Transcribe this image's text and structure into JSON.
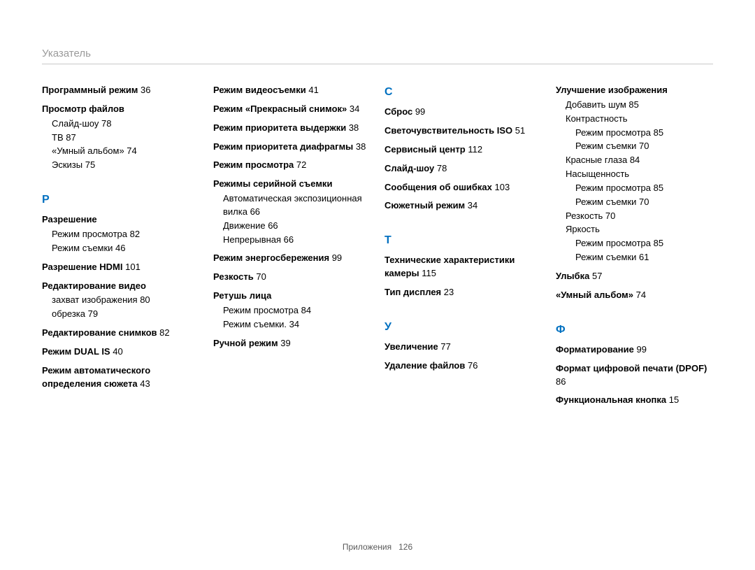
{
  "header": "Указатель",
  "footer_label": "Приложения",
  "footer_page": "126",
  "colors": {
    "letter": "#0070c0",
    "header_text": "#9a9a9a",
    "rule": "#c8c8c8",
    "body": "#000000",
    "background": "#ffffff"
  },
  "typography": {
    "body_size_pt": 10,
    "letter_size_pt": 12,
    "header_size_pt": 11,
    "family": "Arial"
  },
  "columns": [
    [
      {
        "type": "entry",
        "bold": "Программный режим",
        "page": "36"
      },
      {
        "type": "entry",
        "bold": "Просмотр файлов",
        "subs": [
          {
            "text": "Слайд-шоу",
            "page": "78"
          },
          {
            "text": "ТВ",
            "page": "87"
          },
          {
            "text": "«Умный альбом»",
            "page": "74"
          },
          {
            "text": "Эскизы",
            "page": "75"
          }
        ]
      },
      {
        "type": "letter",
        "text": "Р"
      },
      {
        "type": "entry",
        "bold": "Разрешение",
        "subs": [
          {
            "text": "Режим просмотра",
            "page": "82"
          },
          {
            "text": "Режим съемки",
            "page": "46"
          }
        ]
      },
      {
        "type": "entry",
        "bold": "Разрешение HDMI",
        "page": "101"
      },
      {
        "type": "entry",
        "bold": "Редактирование видео",
        "subs": [
          {
            "text": "захват изображения",
            "page": "80"
          },
          {
            "text": "обрезка",
            "page": "79"
          }
        ]
      },
      {
        "type": "entry",
        "bold": "Редактирование снимков",
        "page": "82"
      },
      {
        "type": "entry",
        "bold": "Режим DUAL IS",
        "page": "40"
      },
      {
        "type": "entry",
        "bold": "Режим автоматического определения сюжета",
        "page": "43"
      }
    ],
    [
      {
        "type": "entry",
        "bold": "Режим видеосъемки",
        "page": "41"
      },
      {
        "type": "entry",
        "bold": "Режим «Прекрасный снимок»",
        "page": "34"
      },
      {
        "type": "entry",
        "bold": "Режим приоритета выдержки",
        "page": "38"
      },
      {
        "type": "entry",
        "bold": "Режим приоритета диафрагмы",
        "page": "38"
      },
      {
        "type": "entry",
        "bold": "Режим просмотра",
        "page": "72"
      },
      {
        "type": "entry",
        "bold": "Режимы серийной съемки",
        "subs": [
          {
            "text": "Автоматическая экспозиционная вилка",
            "page": "66"
          },
          {
            "text": "Движение",
            "page": "66"
          },
          {
            "text": "Непрерывная",
            "page": "66"
          }
        ]
      },
      {
        "type": "entry",
        "bold": "Режим энергосбережения",
        "page": "99"
      },
      {
        "type": "entry",
        "bold": "Резкость",
        "page": "70"
      },
      {
        "type": "entry",
        "bold": "Ретушь лица",
        "subs": [
          {
            "text": "Режим просмотра",
            "page": "84"
          },
          {
            "text": "Режим съемки.",
            "page": "34"
          }
        ]
      },
      {
        "type": "entry",
        "bold": "Ручной режим",
        "page": "39"
      }
    ],
    [
      {
        "type": "letter",
        "text": "С"
      },
      {
        "type": "entry",
        "bold": "Сброс",
        "page": "99"
      },
      {
        "type": "entry",
        "bold": "Светочувствительность ISO",
        "page": "51"
      },
      {
        "type": "entry",
        "bold": "Сервисный центр",
        "page": "112"
      },
      {
        "type": "entry",
        "bold": "Слайд-шоу",
        "page": "78"
      },
      {
        "type": "entry",
        "bold": "Сообщения об ошибках",
        "page": "103"
      },
      {
        "type": "entry",
        "bold": "Сюжетный режим",
        "page": "34"
      },
      {
        "type": "letter",
        "text": "Т"
      },
      {
        "type": "entry",
        "bold": "Технические характеристики камеры",
        "page": "115"
      },
      {
        "type": "entry",
        "bold": "Тип дисплея",
        "page": "23"
      },
      {
        "type": "letter",
        "text": "У"
      },
      {
        "type": "entry",
        "bold": "Увеличение",
        "page": "77"
      },
      {
        "type": "entry",
        "bold": "Удаление файлов",
        "page": "76"
      }
    ],
    [
      {
        "type": "entry",
        "bold": "Улучшение изображения",
        "subs": [
          {
            "text": "Добавить шум",
            "page": "85"
          },
          {
            "text": "Контрастность",
            "subs": [
              {
                "text": "Режим просмотра",
                "page": "85"
              },
              {
                "text": "Режим съемки",
                "page": "70"
              }
            ]
          },
          {
            "text": "Красные глаза",
            "page": "84"
          },
          {
            "text": "Насыщенность",
            "subs": [
              {
                "text": "Режим просмотра",
                "page": "85"
              },
              {
                "text": "Режим съемки",
                "page": "70"
              }
            ]
          },
          {
            "text": "Резкость",
            "page": "70"
          },
          {
            "text": "Яркость",
            "subs": [
              {
                "text": "Режим просмотра",
                "page": "85"
              },
              {
                "text": "Режим съемки",
                "page": "61"
              }
            ]
          }
        ]
      },
      {
        "type": "entry",
        "bold": "Улыбка",
        "page": "57"
      },
      {
        "type": "entry",
        "bold": "«Умный альбом»",
        "page": "74"
      },
      {
        "type": "letter",
        "text": "Ф"
      },
      {
        "type": "entry",
        "bold": "Форматирование",
        "page": "99"
      },
      {
        "type": "entry",
        "bold": "Формат цифровой печати (DPOF)",
        "page": "86"
      },
      {
        "type": "entry",
        "bold": "Функциональная кнопка",
        "page": "15"
      }
    ]
  ]
}
